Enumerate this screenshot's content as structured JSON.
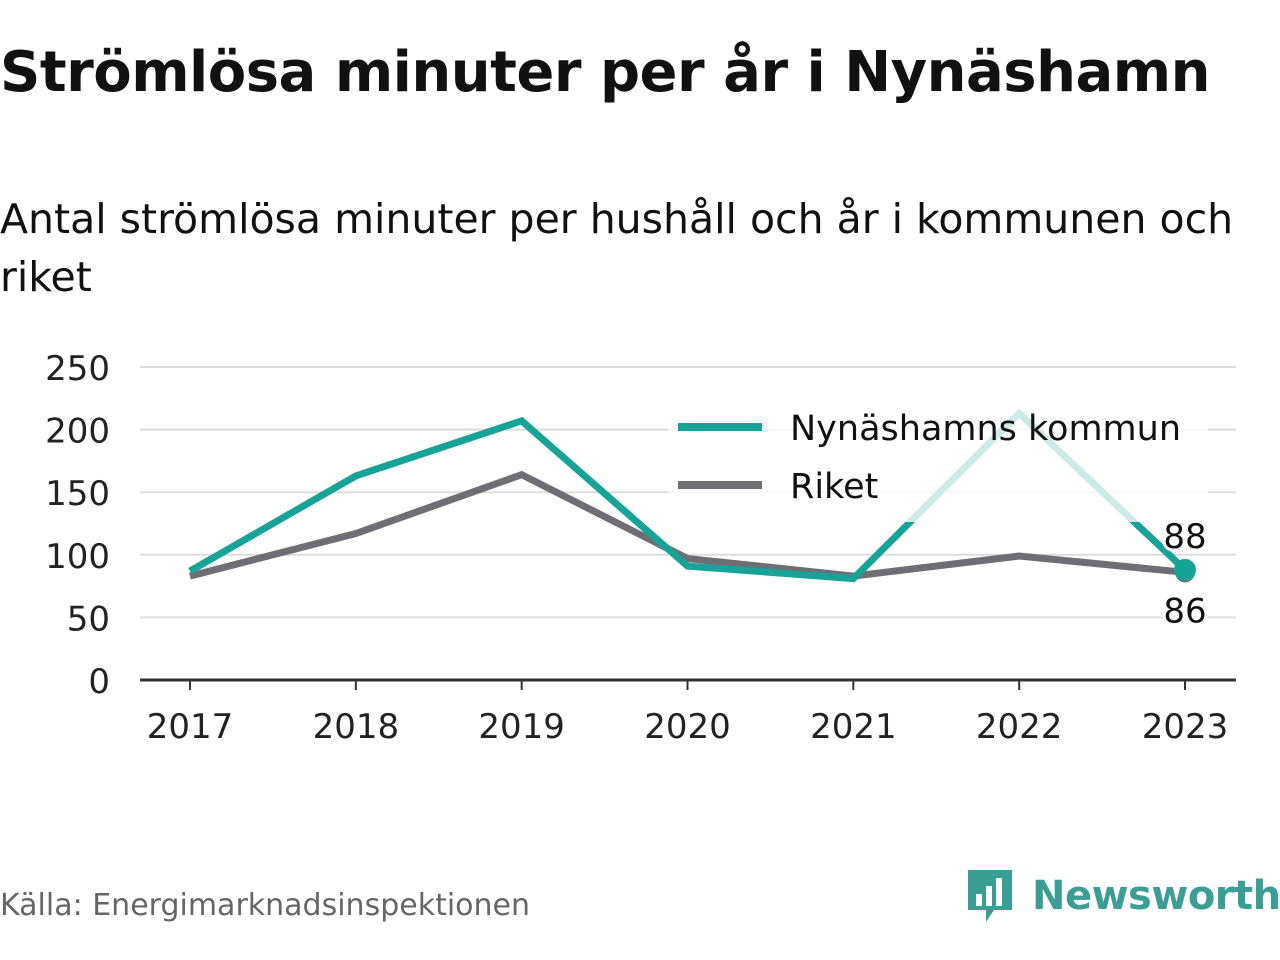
{
  "header": {
    "title": "Strömlösa minuter per år i Nynäshamn",
    "subtitle": "Antal strömlösa minuter per hushåll och år i kommunen och riket"
  },
  "footer": {
    "source": "Källa: Energimarknadsinspektionen",
    "brand": "Newsworthy",
    "brand_icon": "newsworthy-logo-icon"
  },
  "colors": {
    "kommun": "#17a398",
    "riket": "#6e6e74",
    "grid": "#dddddd",
    "axis": "#333333",
    "brand": "#3b9e94"
  },
  "chart_data": {
    "type": "line",
    "x": [
      "2017",
      "2018",
      "2019",
      "2020",
      "2021",
      "2022",
      "2023"
    ],
    "ylim": [
      0,
      250
    ],
    "yticks": [
      "0",
      "50",
      "100",
      "150",
      "200",
      "250"
    ],
    "grid": true,
    "legend_position": "top-right",
    "series": [
      {
        "name": "Nynäshamns kommun",
        "values": [
          87,
          163,
          207,
          91,
          81,
          213,
          88
        ],
        "end_label": "88"
      },
      {
        "name": "Riket",
        "values": [
          83,
          117,
          164,
          97,
          83,
          99,
          86
        ],
        "end_label": "86"
      }
    ]
  }
}
